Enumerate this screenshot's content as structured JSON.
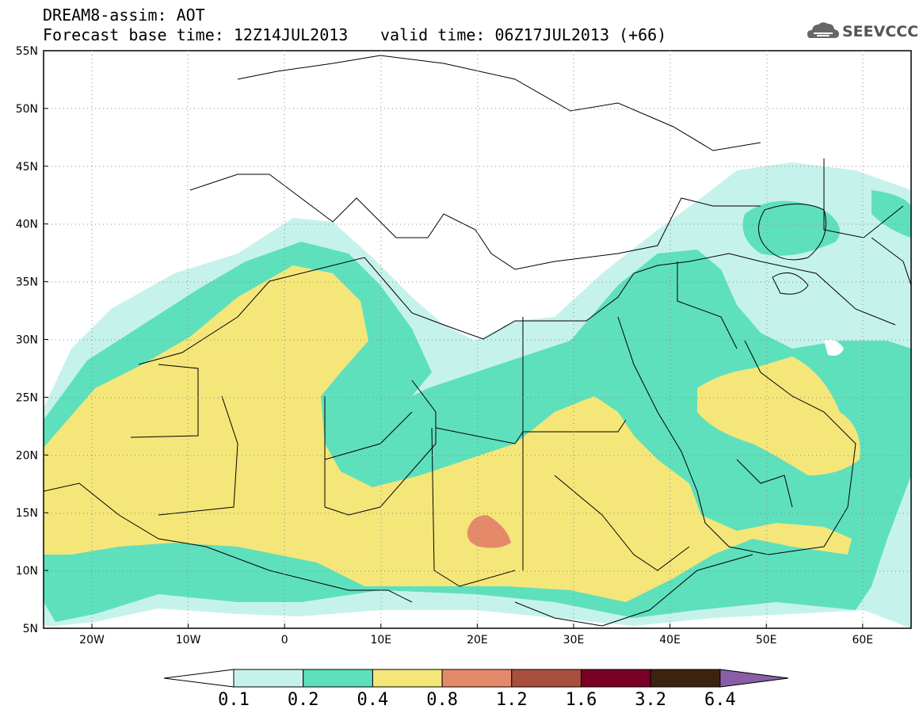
{
  "header": {
    "title_line1": "DREAM8-assim: AOT",
    "title_line2": "Forecast base time: 12Z14JUL2013",
    "valid_time": "valid time: 06Z17JUL2013 (+66)"
  },
  "logo": {
    "text": "SEEVCCC",
    "icon": "cloud-icon"
  },
  "map": {
    "lat_labels": [
      "55N",
      "50N",
      "45N",
      "40N",
      "35N",
      "30N",
      "25N",
      "20N",
      "15N",
      "10N",
      "5N"
    ],
    "lon_labels": [
      "20W",
      "10W",
      "0",
      "10E",
      "20E",
      "30E",
      "40E",
      "50E",
      "60E"
    ],
    "extent": {
      "lon": [
        -25,
        65
      ],
      "lat": [
        5,
        55
      ]
    },
    "colors": {
      "land_bg": "#ffffff",
      "borders": "#000000",
      "aot_0_1": "#c6f2ec",
      "aot_0_2": "#5ee0bd",
      "aot_0_4": "#f5e679",
      "aot_0_8": "#e48a6a"
    }
  },
  "colorbar": {
    "labels": [
      "0.1",
      "0.2",
      "0.4",
      "0.8",
      "1.2",
      "1.6",
      "3.2",
      "6.4"
    ],
    "colors": [
      "#ffffff",
      "#c6f2ec",
      "#5ee0bd",
      "#f5e679",
      "#e48a6a",
      "#a84f3b",
      "#780025",
      "#3b2312",
      "#8a5ea7"
    ]
  }
}
